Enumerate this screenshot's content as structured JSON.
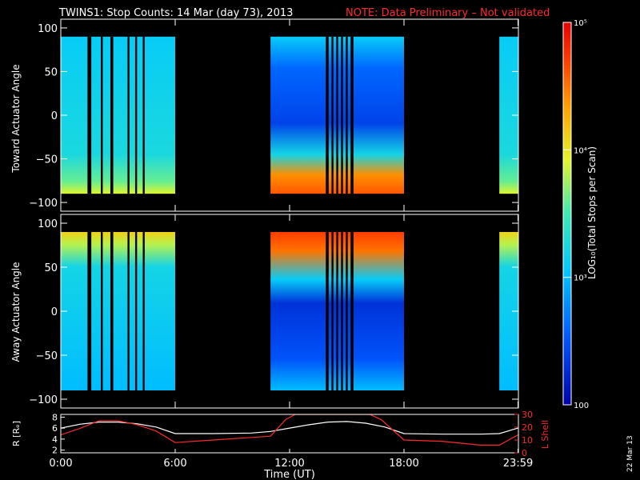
{
  "header": {
    "title": "TWINS1: Stop Counts: 14 Mar (day  73), 2013",
    "note": "NOTE: Data Preliminary – Not validated"
  },
  "side_date": "22 Mar 13",
  "colors": {
    "background": "#000000",
    "axes": "#ffffff",
    "note": "#ff2a2a",
    "r_line": "#ffffff",
    "lshell_line": "#ff2a2a"
  },
  "colorbar": {
    "label": "LOG₁₀(Total Stops per Scan)",
    "ticks": [
      {
        "value": 100000,
        "label": "10⁵"
      },
      {
        "value": 10000,
        "label": "10⁴"
      },
      {
        "value": 1000,
        "label": "10³"
      },
      {
        "value": 100,
        "label": "100"
      }
    ],
    "range": [
      100,
      100000
    ],
    "scale": "log",
    "colormap": "rainbow blue-cyan-green-yellow-orange-red"
  },
  "xaxis": {
    "label": "Time (UT)",
    "ticks": [
      "0:00",
      "6:00",
      "12:00",
      "18:00",
      "23:59"
    ],
    "tick_hours": [
      0,
      6,
      12,
      18,
      23.98
    ],
    "range_hours": [
      0,
      24
    ]
  },
  "chart_data": [
    {
      "type": "heatmap",
      "panel": "toward",
      "ylabel": "Toward Actuator Angle",
      "yticks": [
        100,
        50,
        0,
        -50,
        -100
      ],
      "ylim": [
        -110,
        110
      ],
      "data_extent_deg": [
        -90,
        90
      ],
      "segments_hours": [
        [
          0.0,
          6.0
        ],
        [
          11.0,
          18.0
        ],
        [
          23.0,
          24.0
        ]
      ],
      "gaps_hours": [
        [
          1.4,
          1.6
        ],
        [
          2.1,
          2.2
        ],
        [
          2.6,
          2.75
        ],
        [
          3.5,
          3.6
        ],
        [
          3.9,
          4.0
        ],
        [
          4.3,
          4.4
        ],
        [
          13.9,
          14.05
        ],
        [
          14.2,
          14.3
        ],
        [
          14.45,
          14.55
        ],
        [
          14.7,
          14.8
        ],
        [
          14.95,
          15.05
        ],
        [
          15.2,
          15.35
        ]
      ],
      "description_values": {
        "background_log10": 3.2,
        "low_angle_edge_log10": 3.9,
        "afternoon_blob_low_log10": 2.4,
        "afternoon_edge_high_log10": 4.6
      }
    },
    {
      "type": "heatmap",
      "panel": "away",
      "ylabel": "Away Actuator Angle",
      "yticks": [
        100,
        50,
        0,
        -50,
        -100
      ],
      "ylim": [
        -110,
        110
      ],
      "data_extent_deg": [
        -90,
        90
      ],
      "segments_hours": [
        [
          0.0,
          6.0
        ],
        [
          11.0,
          18.0
        ],
        [
          23.0,
          24.0
        ]
      ],
      "gaps_hours": [
        [
          1.4,
          1.6
        ],
        [
          2.1,
          2.2
        ],
        [
          2.6,
          2.75
        ],
        [
          3.5,
          3.6
        ],
        [
          3.9,
          4.0
        ],
        [
          4.3,
          4.4
        ],
        [
          13.9,
          14.05
        ],
        [
          14.2,
          14.3
        ],
        [
          14.45,
          14.55
        ],
        [
          14.7,
          14.8
        ],
        [
          14.95,
          15.05
        ],
        [
          15.2,
          15.35
        ]
      ],
      "description_values": {
        "background_log10": 3.1,
        "high_angle_edge_log10": 4.1,
        "afternoon_blob_low_log10": 2.3,
        "afternoon_edge_high_log10": 4.7
      }
    },
    {
      "type": "line",
      "panel": "orbit",
      "ylabel_left": "R [Rₑ]",
      "ylabel_right": "L Shell",
      "yticks_left": [
        8,
        6,
        4,
        2
      ],
      "yticks_right": [
        30,
        20,
        10,
        0
      ],
      "ylim_left": [
        1.5,
        8.5
      ],
      "ylim_right": [
        0,
        30
      ],
      "series": [
        {
          "name": "R [Rₑ]",
          "axis": "left",
          "x": [
            0,
            1,
            2,
            3,
            4,
            5,
            6,
            8,
            10,
            11,
            12,
            13,
            14,
            15,
            16,
            17,
            18,
            20,
            22,
            23,
            23.98
          ],
          "y": [
            6.0,
            6.7,
            7.1,
            7.1,
            6.8,
            6.2,
            5.0,
            5.0,
            5.1,
            5.4,
            6.0,
            6.6,
            7.1,
            7.2,
            6.9,
            6.2,
            5.0,
            4.9,
            4.9,
            5.0,
            6.0
          ]
        },
        {
          "name": "L Shell",
          "axis": "right",
          "x": [
            0,
            1,
            2,
            3,
            4,
            5,
            6,
            8,
            10,
            11,
            11.8,
            12.3,
            16.2,
            16.8,
            18,
            20,
            22,
            23,
            23.98
          ],
          "y": [
            14,
            19,
            25,
            25,
            22,
            17,
            8,
            10,
            12,
            13,
            26,
            30,
            30,
            26,
            10,
            9,
            6,
            6,
            14
          ]
        }
      ]
    }
  ]
}
